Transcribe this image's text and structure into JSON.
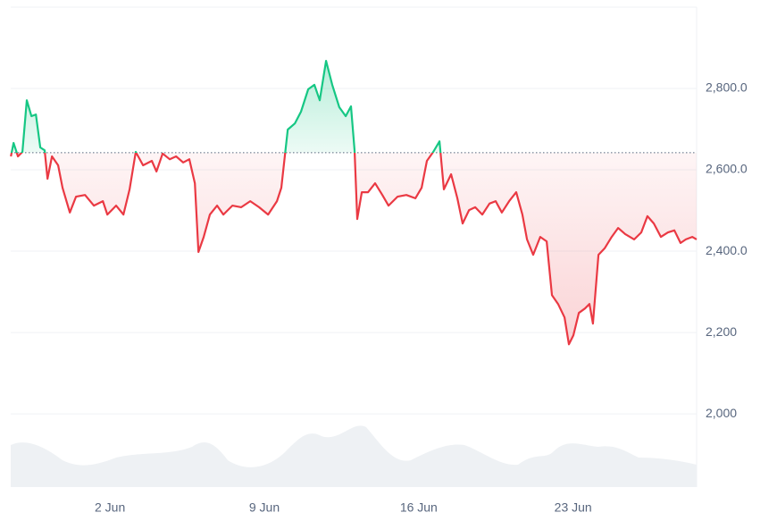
{
  "chart_data": {
    "type": "line",
    "x": [
      -2.49,
      -2.37,
      -2.17,
      -1.97,
      -1.77,
      -1.56,
      -1.36,
      -1.16,
      -0.96,
      -0.83,
      -0.63,
      -0.35,
      -0.15,
      0.18,
      0.46,
      0.87,
      1.27,
      1.68,
      1.88,
      2.28,
      2.61,
      2.89,
      3.17,
      3.5,
      3.9,
      4.11,
      4.39,
      4.71,
      5.0,
      5.32,
      5.6,
      5.85,
      6.01,
      6.25,
      6.53,
      6.86,
      7.14,
      7.55,
      7.95,
      8.36,
      8.76,
      9.17,
      9.57,
      9.77,
      10.06,
      10.38,
      10.66,
      10.99,
      11.27,
      11.51,
      11.8,
      12.08,
      12.4,
      12.69,
      12.93,
      13.09,
      13.21,
      13.42,
      13.7,
      14.02,
      14.35,
      14.63,
      15.04,
      15.44,
      15.85,
      16.13,
      16.37,
      16.66,
      16.94,
      17.14,
      17.47,
      17.75,
      17.99,
      18.28,
      18.56,
      18.88,
      19.21,
      19.49,
      19.77,
      20.1,
      20.42,
      20.7,
      20.91,
      21.19,
      21.51,
      21.8,
      22.04,
      22.32,
      22.61,
      22.81,
      23.01,
      23.26,
      23.54,
      23.74,
      23.9,
      24.15,
      24.43,
      24.75,
      25.04,
      25.36,
      25.77,
      26.09,
      26.37,
      26.66,
      26.98,
      27.3,
      27.59,
      27.87,
      28.11,
      28.4,
      28.6
    ],
    "values": [
      2633,
      2666,
      2633,
      2644,
      2771,
      2732,
      2736,
      2655,
      2648,
      2578,
      2633,
      2611,
      2556,
      2495,
      2534,
      2538,
      2512,
      2523,
      2490,
      2512,
      2490,
      2552,
      2644,
      2611,
      2622,
      2596,
      2640,
      2626,
      2633,
      2618,
      2626,
      2567,
      2398,
      2435,
      2490,
      2512,
      2490,
      2512,
      2508,
      2523,
      2508,
      2490,
      2523,
      2556,
      2699,
      2714,
      2743,
      2798,
      2809,
      2771,
      2868,
      2809,
      2754,
      2732,
      2756,
      2648,
      2479,
      2545,
      2545,
      2567,
      2538,
      2512,
      2534,
      2538,
      2530,
      2556,
      2622,
      2644,
      2670,
      2552,
      2589,
      2530,
      2468,
      2501,
      2508,
      2490,
      2517,
      2523,
      2495,
      2523,
      2545,
      2490,
      2429,
      2391,
      2435,
      2424,
      2292,
      2270,
      2237,
      2171,
      2193,
      2248,
      2259,
      2270,
      2222,
      2391,
      2407,
      2435,
      2457,
      2442,
      2429,
      2446,
      2486,
      2468,
      2435,
      2446,
      2451,
      2420,
      2429,
      2435,
      2429
    ],
    "baseline": 2642,
    "colors": {
      "above": "#16c784",
      "below": "#ea3943"
    },
    "xlim": [
      -2.5,
      28.6
    ],
    "xticks": [
      {
        "value": 2,
        "label": "2 Jun"
      },
      {
        "value": 9,
        "label": "9 Jun"
      },
      {
        "value": 16,
        "label": "16 Jun"
      },
      {
        "value": 23,
        "label": "23 Jun"
      }
    ],
    "ylim": [
      1820,
      3000
    ],
    "yticks": [
      {
        "value": 2000,
        "label": "2,000"
      },
      {
        "value": 2200,
        "label": "2,200"
      },
      {
        "value": 2400,
        "label": "2,400.0"
      },
      {
        "value": 2600,
        "label": "2,600.0"
      },
      {
        "value": 2800,
        "label": "2,800.0"
      }
    ],
    "grid": true
  }
}
